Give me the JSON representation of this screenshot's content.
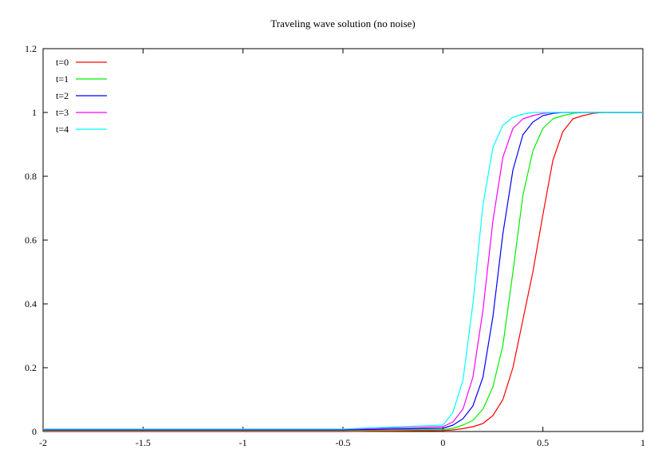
{
  "chart_data": {
    "type": "line",
    "title": "Traveling wave solution (no noise)",
    "xlabel": "",
    "ylabel": "",
    "xlim": [
      -2,
      1
    ],
    "ylim": [
      0,
      1.2
    ],
    "x_ticks": [
      "-2",
      "-1.5",
      "-1",
      "-0.5",
      "0",
      "0.5",
      "1"
    ],
    "x_tick_values": [
      -2,
      -1.5,
      -1,
      -0.5,
      0,
      0.5,
      1
    ],
    "y_ticks": [
      "0",
      "0.2",
      "0.4",
      "0.6",
      "0.8",
      "1",
      "1.2"
    ],
    "y_tick_values": [
      0,
      0.2,
      0.4,
      0.6,
      0.8,
      1,
      1.2
    ],
    "grid": false,
    "legend_position": "top-left",
    "x": [
      -2,
      -1.5,
      -1,
      -0.5,
      0,
      0.05,
      0.1,
      0.15,
      0.2,
      0.25,
      0.3,
      0.35,
      0.4,
      0.45,
      0.5,
      0.55,
      0.6,
      0.65,
      0.7,
      0.75,
      0.8,
      0.9,
      1
    ],
    "series": [
      {
        "name": "t=0",
        "color": "#ff0000",
        "values": [
          0,
          0,
          0,
          0,
          0.003,
          0.005,
          0.009,
          0.015,
          0.025,
          0.05,
          0.1,
          0.2,
          0.35,
          0.5,
          0.68,
          0.85,
          0.94,
          0.98,
          0.99,
          0.997,
          1.0,
          1.0,
          1.0
        ]
      },
      {
        "name": "t=1",
        "color": "#00ee00",
        "values": [
          0.003,
          0.003,
          0.003,
          0.003,
          0.006,
          0.01,
          0.02,
          0.035,
          0.07,
          0.14,
          0.27,
          0.5,
          0.74,
          0.88,
          0.95,
          0.98,
          0.99,
          0.997,
          1.0,
          1.0,
          1.0,
          1.0,
          1.0
        ]
      },
      {
        "name": "t=2",
        "color": "#0000ff",
        "values": [
          0.005,
          0.005,
          0.005,
          0.005,
          0.01,
          0.02,
          0.04,
          0.08,
          0.17,
          0.36,
          0.62,
          0.82,
          0.93,
          0.97,
          0.99,
          0.997,
          1.0,
          1.0,
          1.0,
          1.0,
          1.0,
          1.0,
          1.0
        ]
      },
      {
        "name": "t=3",
        "color": "#ff00ff",
        "values": [
          0.007,
          0.007,
          0.007,
          0.007,
          0.015,
          0.03,
          0.07,
          0.17,
          0.38,
          0.66,
          0.86,
          0.95,
          0.98,
          0.99,
          0.997,
          1.0,
          1.0,
          1.0,
          1.0,
          1.0,
          1.0,
          1.0,
          1.0
        ]
      },
      {
        "name": "t=4",
        "color": "#00ffff",
        "values": [
          0.008,
          0.008,
          0.008,
          0.008,
          0.02,
          0.06,
          0.16,
          0.4,
          0.71,
          0.89,
          0.96,
          0.985,
          0.995,
          1.0,
          1.0,
          1.0,
          1.0,
          1.0,
          1.0,
          1.0,
          1.0,
          1.0,
          1.0
        ]
      }
    ]
  }
}
